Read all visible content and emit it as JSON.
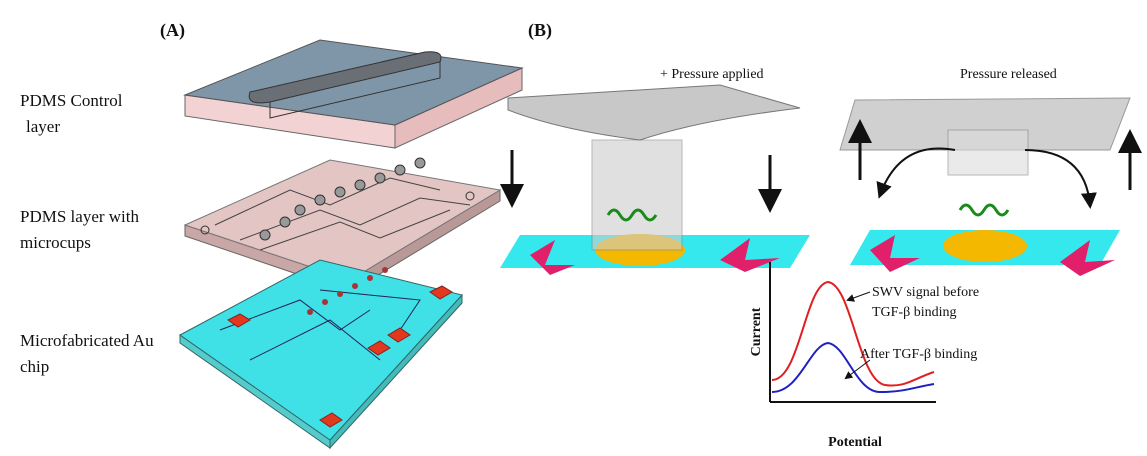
{
  "panel_a": {
    "label": "(A)",
    "layers": [
      {
        "lines": [
          "PDMS Control",
          "layer"
        ]
      },
      {
        "lines": [
          "PDMS layer with",
          "microcups"
        ]
      },
      {
        "lines": [
          "Microfabricated Au",
          "chip"
        ]
      }
    ]
  },
  "panel_b": {
    "label": "(B)",
    "scenes": [
      "+ Pressure applied",
      "Pressure released"
    ],
    "graph": {
      "y_label": "Current",
      "x_label": "Potential",
      "annotations": [
        {
          "lines": [
            "SWV signal before",
            "TGF-β binding"
          ]
        },
        {
          "lines": [
            "After TGF-β binding"
          ]
        }
      ]
    }
  }
}
